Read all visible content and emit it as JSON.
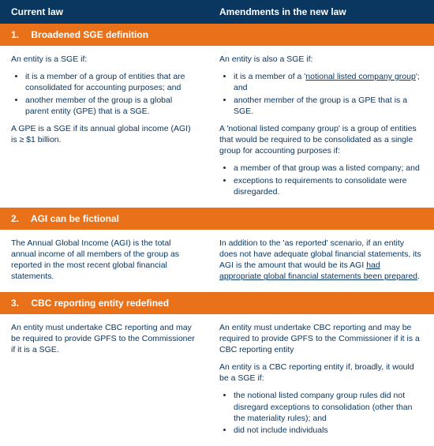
{
  "colors": {
    "navy": "#0a3760",
    "orange": "#e8711a",
    "text": "#0a3760"
  },
  "header": {
    "left": "Current law",
    "right": "Amendments in the new law"
  },
  "sections": [
    {
      "num": "1.",
      "title": "Broadened SGE definition",
      "left": {
        "p1": "An entity is a SGE if:",
        "b1": "it is a member of a group of entities that are consolidated for accounting purposes; and",
        "b2": "another member of the group is a global parent entity (GPE) that is a SGE.",
        "p2": "A GPE is a SGE if its annual global income (AGI) is ≥ $1 billion."
      },
      "right": {
        "p1": "An entity is also a SGE if:",
        "b1a": "it is a member of a '",
        "b1u": "notional listed company group",
        "b1b": "'; and",
        "b2": "another member of the group is a GPE that is a SGE.",
        "p2": "A 'notional listed company group' is a group of entities that would be required to be consolidated as a single group for accounting purposes if:",
        "b3": "a member of that group was a listed company; and",
        "b4": "exceptions to requirements to consolidate were disregarded."
      }
    },
    {
      "num": "2.",
      "title": "AGI can be fictional",
      "left": {
        "p1": "The Annual Global Income (AGI) is the total annual income of all members of the group as reported in the most recent global financial statements."
      },
      "right": {
        "p1a": "In addition to the 'as reported' scenario, if an entity does not have adequate global financial statements, its AGI is the amount that would be its AGI ",
        "p1u": "had appropriate global financial statements been prepared",
        "p1b": "."
      }
    },
    {
      "num": "3.",
      "title": "CBC reporting entity redefined",
      "left": {
        "p1": "An entity must undertake CBC reporting and may be required to provide GPFS to the Commissioner if it is a SGE."
      },
      "right": {
        "p1": "An entity must undertake CBC reporting and may be required to provide GPFS to the Commissioner if it is a CBC reporting entity",
        "p2": "An entity is a CBC reporting entity if, broadly, it would be a SGE if:",
        "b1": "the notional listed company group rules did not disregard exceptions to consolidation (other than the materiality rules); and",
        "b2": "did not include individuals"
      }
    }
  ]
}
